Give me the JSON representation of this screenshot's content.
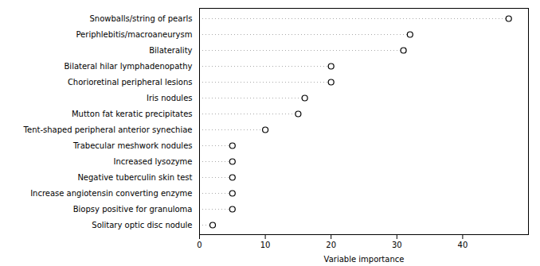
{
  "chart_data": {
    "type": "dot",
    "orientation": "horizontal",
    "categories": [
      "Snowballs/string of pearls",
      "Periphlebitis/macroaneurysm",
      "Bilaterality",
      "Bilateral hilar lymphadenopathy",
      "Chorioretinal peripheral lesions",
      "Iris nodules",
      "Mutton fat keratic precipitates",
      "Tent-shaped peripheral anterior synechiae",
      "Trabecular meshwork nodules",
      "Increased lysozyme",
      "Negative tuberculin skin test",
      "Increase angiotensin converting enzyme",
      "Biopsy positive for granuloma",
      "Solitary optic disc nodule"
    ],
    "values": [
      47,
      32,
      31,
      20,
      20,
      16,
      15,
      10,
      5,
      5,
      5,
      5,
      5,
      2
    ],
    "xlabel": "Variable importance",
    "xlim": [
      0,
      50
    ],
    "xticks": [
      0,
      10,
      20,
      30,
      40
    ],
    "color": "black",
    "marker": "circle",
    "line_style": "dotted",
    "grid": false
  }
}
